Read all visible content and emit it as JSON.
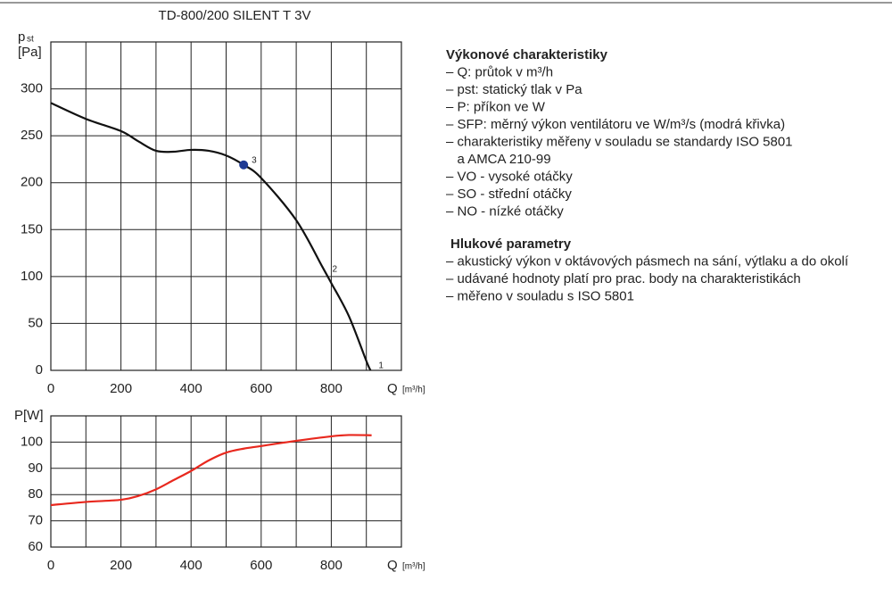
{
  "chart_data": [
    {
      "type": "line",
      "title": "TD-800/200 SILENT T 3V",
      "y_label": "p",
      "y_label_sub": "st",
      "y_unit": "[Pa]",
      "x_label": "Q",
      "x_unit": "[m³/h]",
      "color": "#111111",
      "x": [
        0,
        100,
        200,
        250,
        300,
        350,
        400,
        450,
        500,
        550,
        600,
        700,
        775,
        800,
        850,
        900,
        912
      ],
      "values": [
        285,
        268,
        255,
        244,
        234,
        233,
        235,
        234,
        229,
        219,
        205,
        160,
        110,
        93,
        58,
        10,
        0
      ],
      "points": [
        {
          "label": "3",
          "x": 550,
          "y": 219,
          "color": "#1f3a93"
        },
        {
          "label": "2",
          "x": 780,
          "y": 103
        },
        {
          "label": "1",
          "x": 912,
          "y": 0
        }
      ],
      "xlim": [
        0,
        1000
      ],
      "xticks": [
        0,
        200,
        400,
        600,
        800
      ],
      "x_minor_ticks": [
        100,
        300,
        500,
        700,
        900
      ],
      "ylim": [
        0,
        350
      ],
      "yticks": [
        0,
        50,
        100,
        150,
        200,
        250,
        300
      ],
      "grid": true
    },
    {
      "type": "line",
      "y_label": "P[W]",
      "label_color": "#e8281e",
      "x_label": "Q",
      "x_unit": "[m³/h]",
      "color": "#e8281e",
      "x": [
        0,
        100,
        200,
        250,
        300,
        350,
        400,
        450,
        500,
        550,
        600,
        700,
        800,
        850,
        915
      ],
      "values": [
        76,
        77.2,
        78,
        79.5,
        82,
        85.5,
        89,
        93,
        96,
        97.5,
        98.5,
        100.5,
        102.2,
        102.7,
        102.6
      ],
      "xlim": [
        0,
        1000
      ],
      "xticks": [
        0,
        200,
        400,
        600,
        800
      ],
      "x_minor_ticks": [
        100,
        300,
        500,
        700,
        900
      ],
      "ylim": [
        60,
        110
      ],
      "yticks": [
        60,
        70,
        80,
        90,
        100
      ],
      "grid": true
    }
  ],
  "notes": {
    "sections": [
      {
        "heading": "Výkonové charakteristiky",
        "items": [
          "– Q: průtok v m³/h",
          "– pst: statický tlak v Pa",
          "– P: příkon ve W",
          "– SFP: měrný výkon ventilátoru ve W/m³/s (modrá křivka)",
          "– charakteristiky měřeny v souladu se standardy ISO 5801",
          "   a AMCA 210-99",
          "– VO - vysoké otáčky",
          "– SO - střední otáčky",
          "– NO - nízké otáčky"
        ]
      },
      {
        "heading": "Hlukové parametry",
        "items": [
          "– akustický výkon v oktávových pásmech na sání, výtlaku a do okolí",
          "– udávané hodnoty platí pro prac. body na charakteristikách",
          "– měřeno v souladu s ISO 5801"
        ]
      }
    ]
  }
}
